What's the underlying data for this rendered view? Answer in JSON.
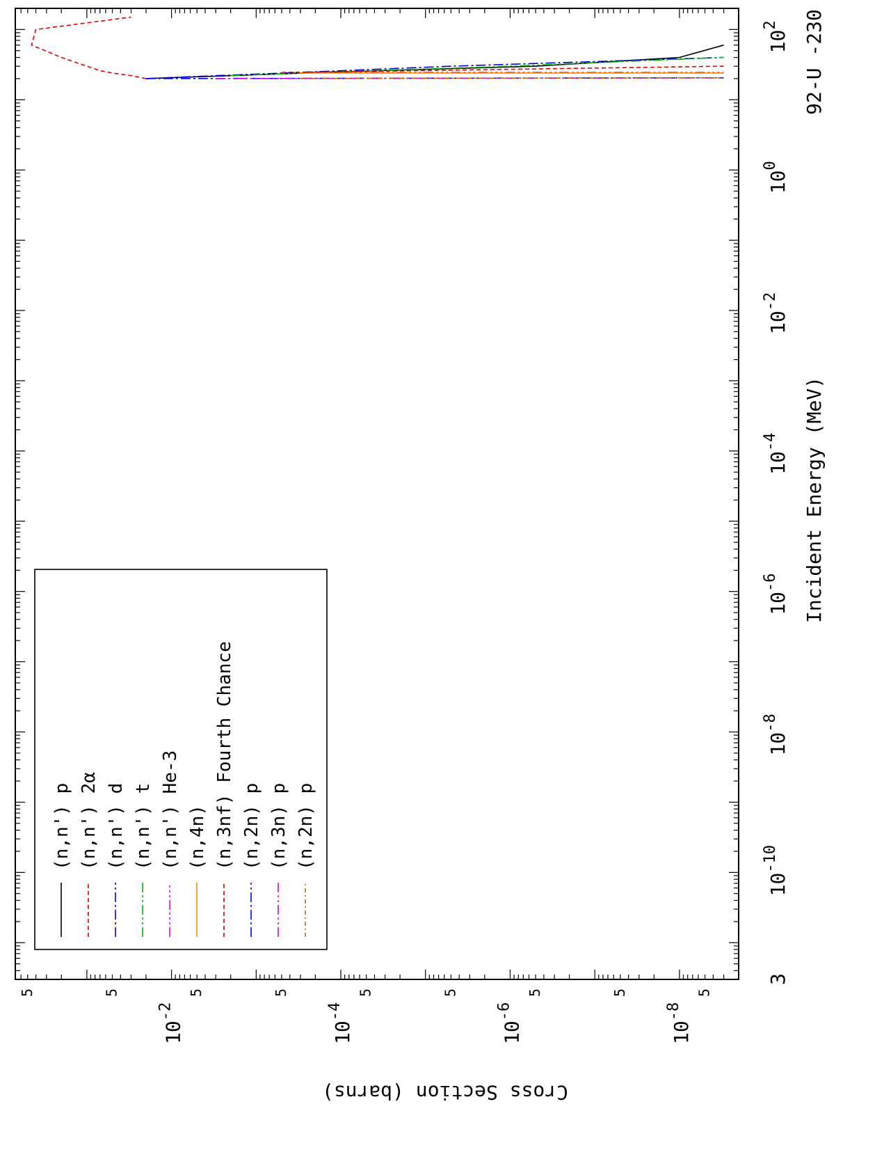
{
  "chart_data": {
    "type": "line",
    "rotated_plot": true,
    "title": "92-U -230",
    "xlabel": "Incident Energy (MeV)",
    "ylabel": "Cross Section (barns)",
    "x_scale": "log",
    "y_scale": "log",
    "xlim": [
      3e-12,
      200
    ],
    "ylim": [
      2e-09,
      0.7
    ],
    "x_ticks": [
      {
        "value": 1e-10,
        "label": "10",
        "exp": "-10"
      },
      {
        "value": 1e-08,
        "label": "10",
        "exp": "-8"
      },
      {
        "value": 1e-06,
        "label": "10",
        "exp": "-6"
      },
      {
        "value": 0.0001,
        "label": "10",
        "exp": "-4"
      },
      {
        "value": 0.01,
        "label": "10",
        "exp": "-2"
      },
      {
        "value": 1,
        "label": "10",
        "exp": "0"
      },
      {
        "value": 100,
        "label": "10",
        "exp": "2"
      }
    ],
    "x_extra_labels": [
      {
        "value": 3e-12,
        "label": "3"
      }
    ],
    "y_ticks": [
      {
        "value": 1e-08,
        "label": "10",
        "exp": "-8"
      },
      {
        "value": 1e-06,
        "label": "10",
        "exp": "-6"
      },
      {
        "value": 0.0001,
        "label": "10",
        "exp": "-4"
      },
      {
        "value": 0.01,
        "label": "10",
        "exp": "-2"
      }
    ],
    "y_five_labels": [
      5e-09,
      5e-08,
      5e-07,
      5e-06,
      5e-05,
      0.0005,
      0.005,
      0.05,
      0.5
    ],
    "five_label": "5",
    "legend": {
      "placement": "lower-left",
      "entries": [
        {
          "reaction": "(n,n')",
          "particle": "p",
          "color": "#000000",
          "dash": ""
        },
        {
          "reaction": "(n,n')",
          "particle": "2α",
          "color": "#e00000",
          "dash": "6,4"
        },
        {
          "reaction": "(n,n')",
          "particle": "d",
          "color": "#0000cc",
          "dash": "14,4,3,4"
        },
        {
          "reaction": "(n,n')",
          "particle": "t",
          "color": "#00bb00",
          "dash": "14,4,3,4,3,4"
        },
        {
          "reaction": "(n,n')",
          "particle": "He-3",
          "color": "#ee00ee",
          "dash": "14,4,3,4,3,4,3,4"
        },
        {
          "reaction": "(n,4n)",
          "particle": "",
          "color": "#ff8800",
          "dash": ""
        },
        {
          "reaction": "(n,3nf)",
          "particle": "Fourth Chance",
          "color": "#dd0000",
          "dash": "6,4"
        },
        {
          "reaction": "(n,2n)",
          "particle": "p",
          "color": "#0000ff",
          "dash": "14,4,3,4"
        },
        {
          "reaction": "(n,3n)",
          "particle": "p",
          "color": "#cc00cc",
          "dash": "14,4,3,4,3,4"
        },
        {
          "reaction": "(n,2n)",
          "particle": "p",
          "color": "#b86e00",
          "dash": "6,4,2,4"
        }
      ]
    },
    "series": [
      {
        "color": "#000000",
        "dash": "",
        "x": [
          20,
          22,
          25,
          30,
          40,
          60
        ],
        "y": [
          0.02,
          0.002,
          0.0001,
          5e-07,
          1e-08,
          3e-09
        ]
      },
      {
        "color": "#e00000",
        "dash": "6,4",
        "x": [
          20,
          22,
          24,
          26,
          30,
          40,
          60,
          100,
          150
        ],
        "y": [
          0.02,
          0.03,
          0.05,
          0.07,
          0.1,
          0.2,
          0.45,
          0.4,
          0.03
        ]
      },
      {
        "color": "#0000cc",
        "dash": "14,4,3,4",
        "x": [
          20,
          22,
          25,
          30,
          40
        ],
        "y": [
          0.02,
          0.003,
          0.0002,
          5e-06,
          3e-09
        ]
      },
      {
        "color": "#00bb00",
        "dash": "14,4,3,4,3,4",
        "x": [
          22,
          25,
          30,
          40
        ],
        "y": [
          0.002,
          0.0001,
          1e-06,
          3e-09
        ]
      },
      {
        "color": "#ee00ee",
        "dash": "14,4,3,4,3,4,3,4",
        "x": [
          24.5,
          24.5
        ],
        "y": [
          0.0002,
          3e-09
        ]
      },
      {
        "color": "#ff8800",
        "dash": "",
        "x": [
          24,
          24
        ],
        "y": [
          0.0003,
          3e-09
        ]
      },
      {
        "color": "#dd0000",
        "dash": "6,4",
        "x": [
          24.5,
          25,
          30
        ],
        "y": [
          0.0005,
          0.0001,
          3e-09
        ]
      },
      {
        "color": "#0000ff",
        "dash": "14,4,3,4",
        "x": [
          20,
          20.5
        ],
        "y": [
          0.02,
          3e-09
        ]
      },
      {
        "color": "#cc00cc",
        "dash": "14,4,3,4,3,4",
        "x": [
          20,
          20.5
        ],
        "y": [
          0.003,
          3e-09
        ]
      },
      {
        "color": "#b86e00",
        "dash": "6,4,2,4",
        "x": [
          20,
          20.5
        ],
        "y": [
          0.0003,
          3e-09
        ]
      }
    ]
  }
}
